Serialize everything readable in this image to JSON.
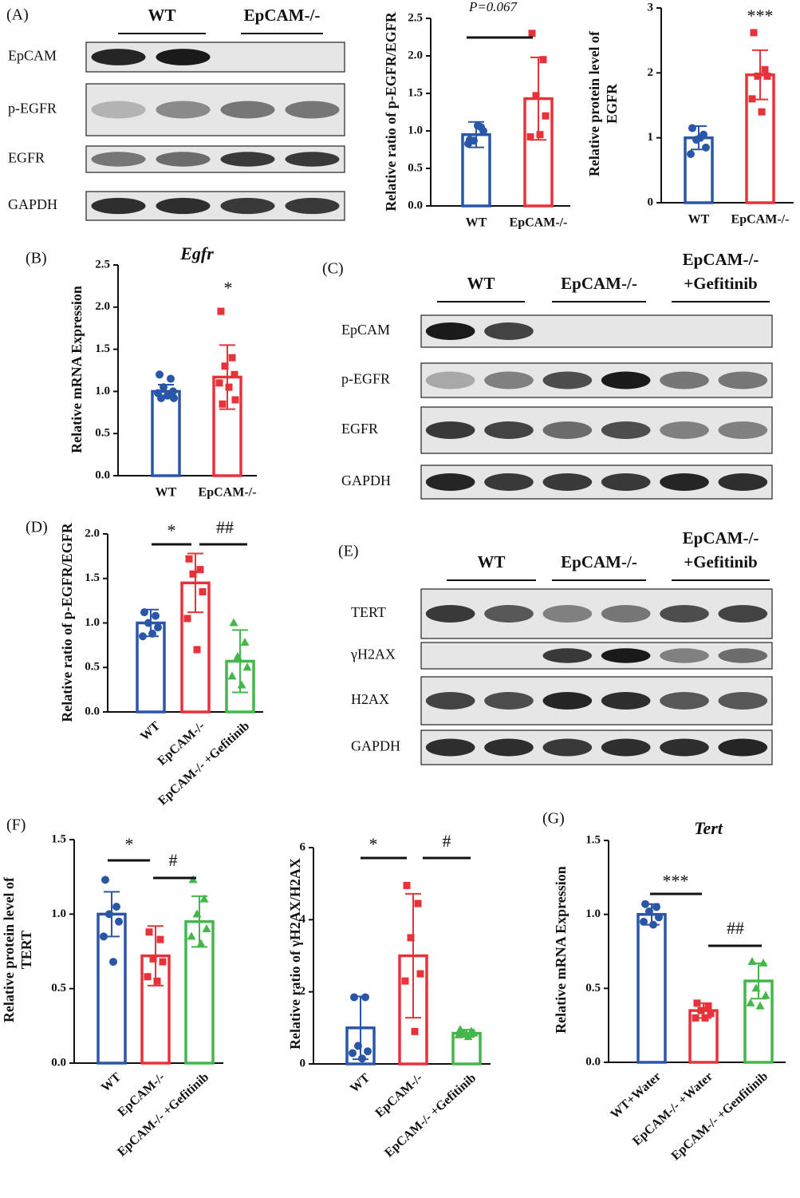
{
  "panel_labels": [
    "(A)",
    "(B)",
    "(C)",
    "(D)",
    "(E)",
    "(F)",
    "(G)"
  ],
  "blots": [
    {
      "groups": [
        [
          "WT"
        ],
        [
          "EpCAM-/-"
        ]
      ],
      "rows": [
        "EpCAM",
        "p-EGFR",
        "EGFR",
        "GAPDH"
      ]
    },
    {
      "groups": [
        [
          "WT"
        ],
        [
          "EpCAM-/-"
        ],
        [
          "EpCAM-/-",
          "+Gefitinib"
        ]
      ],
      "rows": [
        "EpCAM",
        "p-EGFR",
        "EGFR",
        "GAPDH"
      ]
    },
    {
      "groups": [
        [
          "WT"
        ],
        [
          "EpCAM-/-"
        ],
        [
          "EpCAM-/-",
          "+Gefitinib"
        ]
      ],
      "rows": [
        "TERT",
        "γH2AX",
        "H2AX",
        "GAPDH"
      ]
    }
  ],
  "chart_data": [
    {
      "type": "bar",
      "ylabel_lines": [
        "Relative ratio of p-EGFR/EGFR"
      ],
      "categories": [
        "WT",
        "EpCAM-/-"
      ],
      "colors": [
        "#2a56a8",
        "#e8323a"
      ],
      "markers": [
        "circle",
        "square"
      ],
      "values": [
        0.95,
        1.43
      ],
      "errors": [
        0.17,
        0.55
      ],
      "points": [
        [
          0.88,
          1.05,
          0.87,
          1.0,
          0.83,
          1.07
        ],
        [
          2.3,
          1.95,
          1.47,
          1.2,
          0.92,
          0.95
        ]
      ],
      "ylim": [
        0,
        2.5
      ],
      "yticks": [
        {
          "value": 0,
          "label": "0.0"
        },
        0.5,
        {
          "value": 1,
          "label": "1.0"
        },
        1.5,
        {
          "value": 2,
          "label": "2.0"
        },
        2.5
      ],
      "annotations": [
        "P=0.067"
      ]
    },
    {
      "type": "bar",
      "ylabel_lines": [
        "Relative protein level of",
        "EGFR"
      ],
      "categories": [
        "WT",
        "EpCAM-/-"
      ],
      "colors": [
        "#2a56a8",
        "#e8323a"
      ],
      "markers": [
        "circle",
        "square"
      ],
      "values": [
        1.0,
        1.97
      ],
      "errors": [
        0.18,
        0.38
      ],
      "points": [
        [
          1.15,
          1.05,
          0.97,
          0.85,
          0.75,
          1.0
        ],
        [
          2.62,
          2.05,
          1.95,
          1.95,
          1.6,
          1.4
        ]
      ],
      "ylim": [
        0,
        3
      ],
      "yticks": [
        0,
        1,
        2,
        3
      ],
      "annotations": [
        "***"
      ]
    },
    {
      "type": "bar",
      "title": "Egfr",
      "ylabel_lines": [
        "Relative mRNA Expression"
      ],
      "categories": [
        "WT",
        "EpCAM-/-"
      ],
      "colors": [
        "#2a56a8",
        "#e8323a"
      ],
      "markers": [
        "circle",
        "square"
      ],
      "values": [
        1.0,
        1.17
      ],
      "errors": [
        0.08,
        0.38
      ],
      "points": [
        [
          1.2,
          1.15,
          1.05,
          1.0,
          0.98,
          0.95,
          0.92,
          0.92
        ],
        [
          1.95,
          1.4,
          1.3,
          1.2,
          1.1,
          1.05,
          0.9,
          0.85
        ]
      ],
      "ylim": [
        0,
        2.5
      ],
      "yticks": [
        {
          "value": 0,
          "label": "0.0"
        },
        0.5,
        {
          "value": 1,
          "label": "1.0"
        },
        1.5,
        {
          "value": 2,
          "label": "2.0"
        },
        2.5
      ],
      "annotations": [
        "*"
      ]
    },
    {
      "type": "bar",
      "ylabel_lines": [
        "Relative ratio of p-EGFR/EGFR"
      ],
      "categories": [
        "WT",
        "EpCAM-/-",
        "EpCAM-/- +Gefitinib"
      ],
      "colors": [
        "#2a56a8",
        "#e8323a",
        "#45b64a"
      ],
      "markers": [
        "circle",
        "square",
        "triangle"
      ],
      "values": [
        1.0,
        1.45,
        0.57
      ],
      "errors": [
        0.15,
        0.33,
        0.35
      ],
      "points": [
        [
          1.12,
          1.08,
          1.0,
          0.95,
          0.85,
          0.88
        ],
        [
          1.72,
          1.6,
          1.55,
          1.35,
          1.05,
          0.7
        ],
        [
          1.0,
          0.78,
          0.62,
          0.5,
          0.4,
          0.3
        ]
      ],
      "ylim": [
        0,
        2
      ],
      "yticks": [
        {
          "value": 0,
          "label": "0.0"
        },
        0.5,
        {
          "value": 1,
          "label": "1.0"
        },
        1.5,
        {
          "value": 2,
          "label": "2.0"
        }
      ],
      "annotations": [
        "*",
        "##"
      ]
    },
    {
      "type": "bar",
      "ylabel_lines": [
        "Relative protein level of",
        "TERT"
      ],
      "categories": [
        "WT",
        "EpCAM-/-",
        "EpCAM-/- +Gefitinib"
      ],
      "colors": [
        "#2a56a8",
        "#e8323a",
        "#45b64a"
      ],
      "markers": [
        "circle",
        "square",
        "triangle"
      ],
      "values": [
        1.0,
        0.72,
        0.95
      ],
      "errors": [
        0.15,
        0.2,
        0.17
      ],
      "points": [
        [
          1.23,
          1.05,
          1.0,
          0.95,
          0.85,
          0.68
        ],
        [
          0.88,
          0.83,
          0.7,
          0.68,
          0.58,
          0.55
        ],
        [
          1.23,
          1.1,
          1.0,
          0.9,
          0.85,
          0.8
        ]
      ],
      "ylim": [
        0,
        1.5
      ],
      "yticks": [
        {
          "value": 0,
          "label": "0.0"
        },
        0.5,
        {
          "value": 1,
          "label": "1.0"
        },
        1.5
      ],
      "annotations": [
        "*",
        "#"
      ]
    },
    {
      "type": "bar",
      "ylabel_lines": [
        "Relative ratio of γH2AX/H2AX"
      ],
      "categories": [
        "WT",
        "EpCAM-/-",
        "EpCAM-/- +Gefitinib"
      ],
      "colors": [
        "#2a56a8",
        "#e8323a",
        "#45b64a"
      ],
      "markers": [
        "circle",
        "square",
        "triangle"
      ],
      "values": [
        1.0,
        3.0,
        0.85
      ],
      "errors": [
        0.87,
        1.72,
        0.1
      ],
      "points": [
        [
          1.85,
          1.85,
          0.5,
          0.35,
          0.3,
          0.15
        ],
        [
          4.95,
          4.45,
          3.5,
          2.5,
          2.3,
          0.9
        ],
        [
          0.95,
          0.9,
          0.85,
          0.85,
          0.8,
          0.75
        ]
      ],
      "ylim": [
        0,
        6
      ],
      "yticks": [
        0,
        2,
        4,
        6
      ],
      "annotations": [
        "*",
        "#"
      ]
    },
    {
      "type": "bar",
      "title": "Tert",
      "ylabel_lines": [
        "Relative mRNA Expression"
      ],
      "categories": [
        "WT+Water",
        "EpCAM-/- +Water",
        "EpCAM-/- +Genfitinib"
      ],
      "colors": [
        "#2a56a8",
        "#e8323a",
        "#45b64a"
      ],
      "markers": [
        "circle",
        "square",
        "triangle"
      ],
      "values": [
        1.0,
        0.35,
        0.55
      ],
      "errors": [
        0.07,
        0.05,
        0.12
      ],
      "points": [
        [
          1.07,
          1.05,
          1.02,
          0.98,
          0.95,
          0.93
        ],
        [
          0.4,
          0.38,
          0.35,
          0.33,
          0.3,
          0.3
        ],
        [
          0.68,
          0.67,
          0.5,
          0.45,
          0.4,
          0.38
        ]
      ],
      "ylim": [
        0,
        1.5
      ],
      "yticks": [
        {
          "value": 0,
          "label": "0.0"
        },
        0.5,
        {
          "value": 1,
          "label": "1.0"
        },
        1.5
      ],
      "annotations": [
        "***",
        "##"
      ]
    }
  ]
}
